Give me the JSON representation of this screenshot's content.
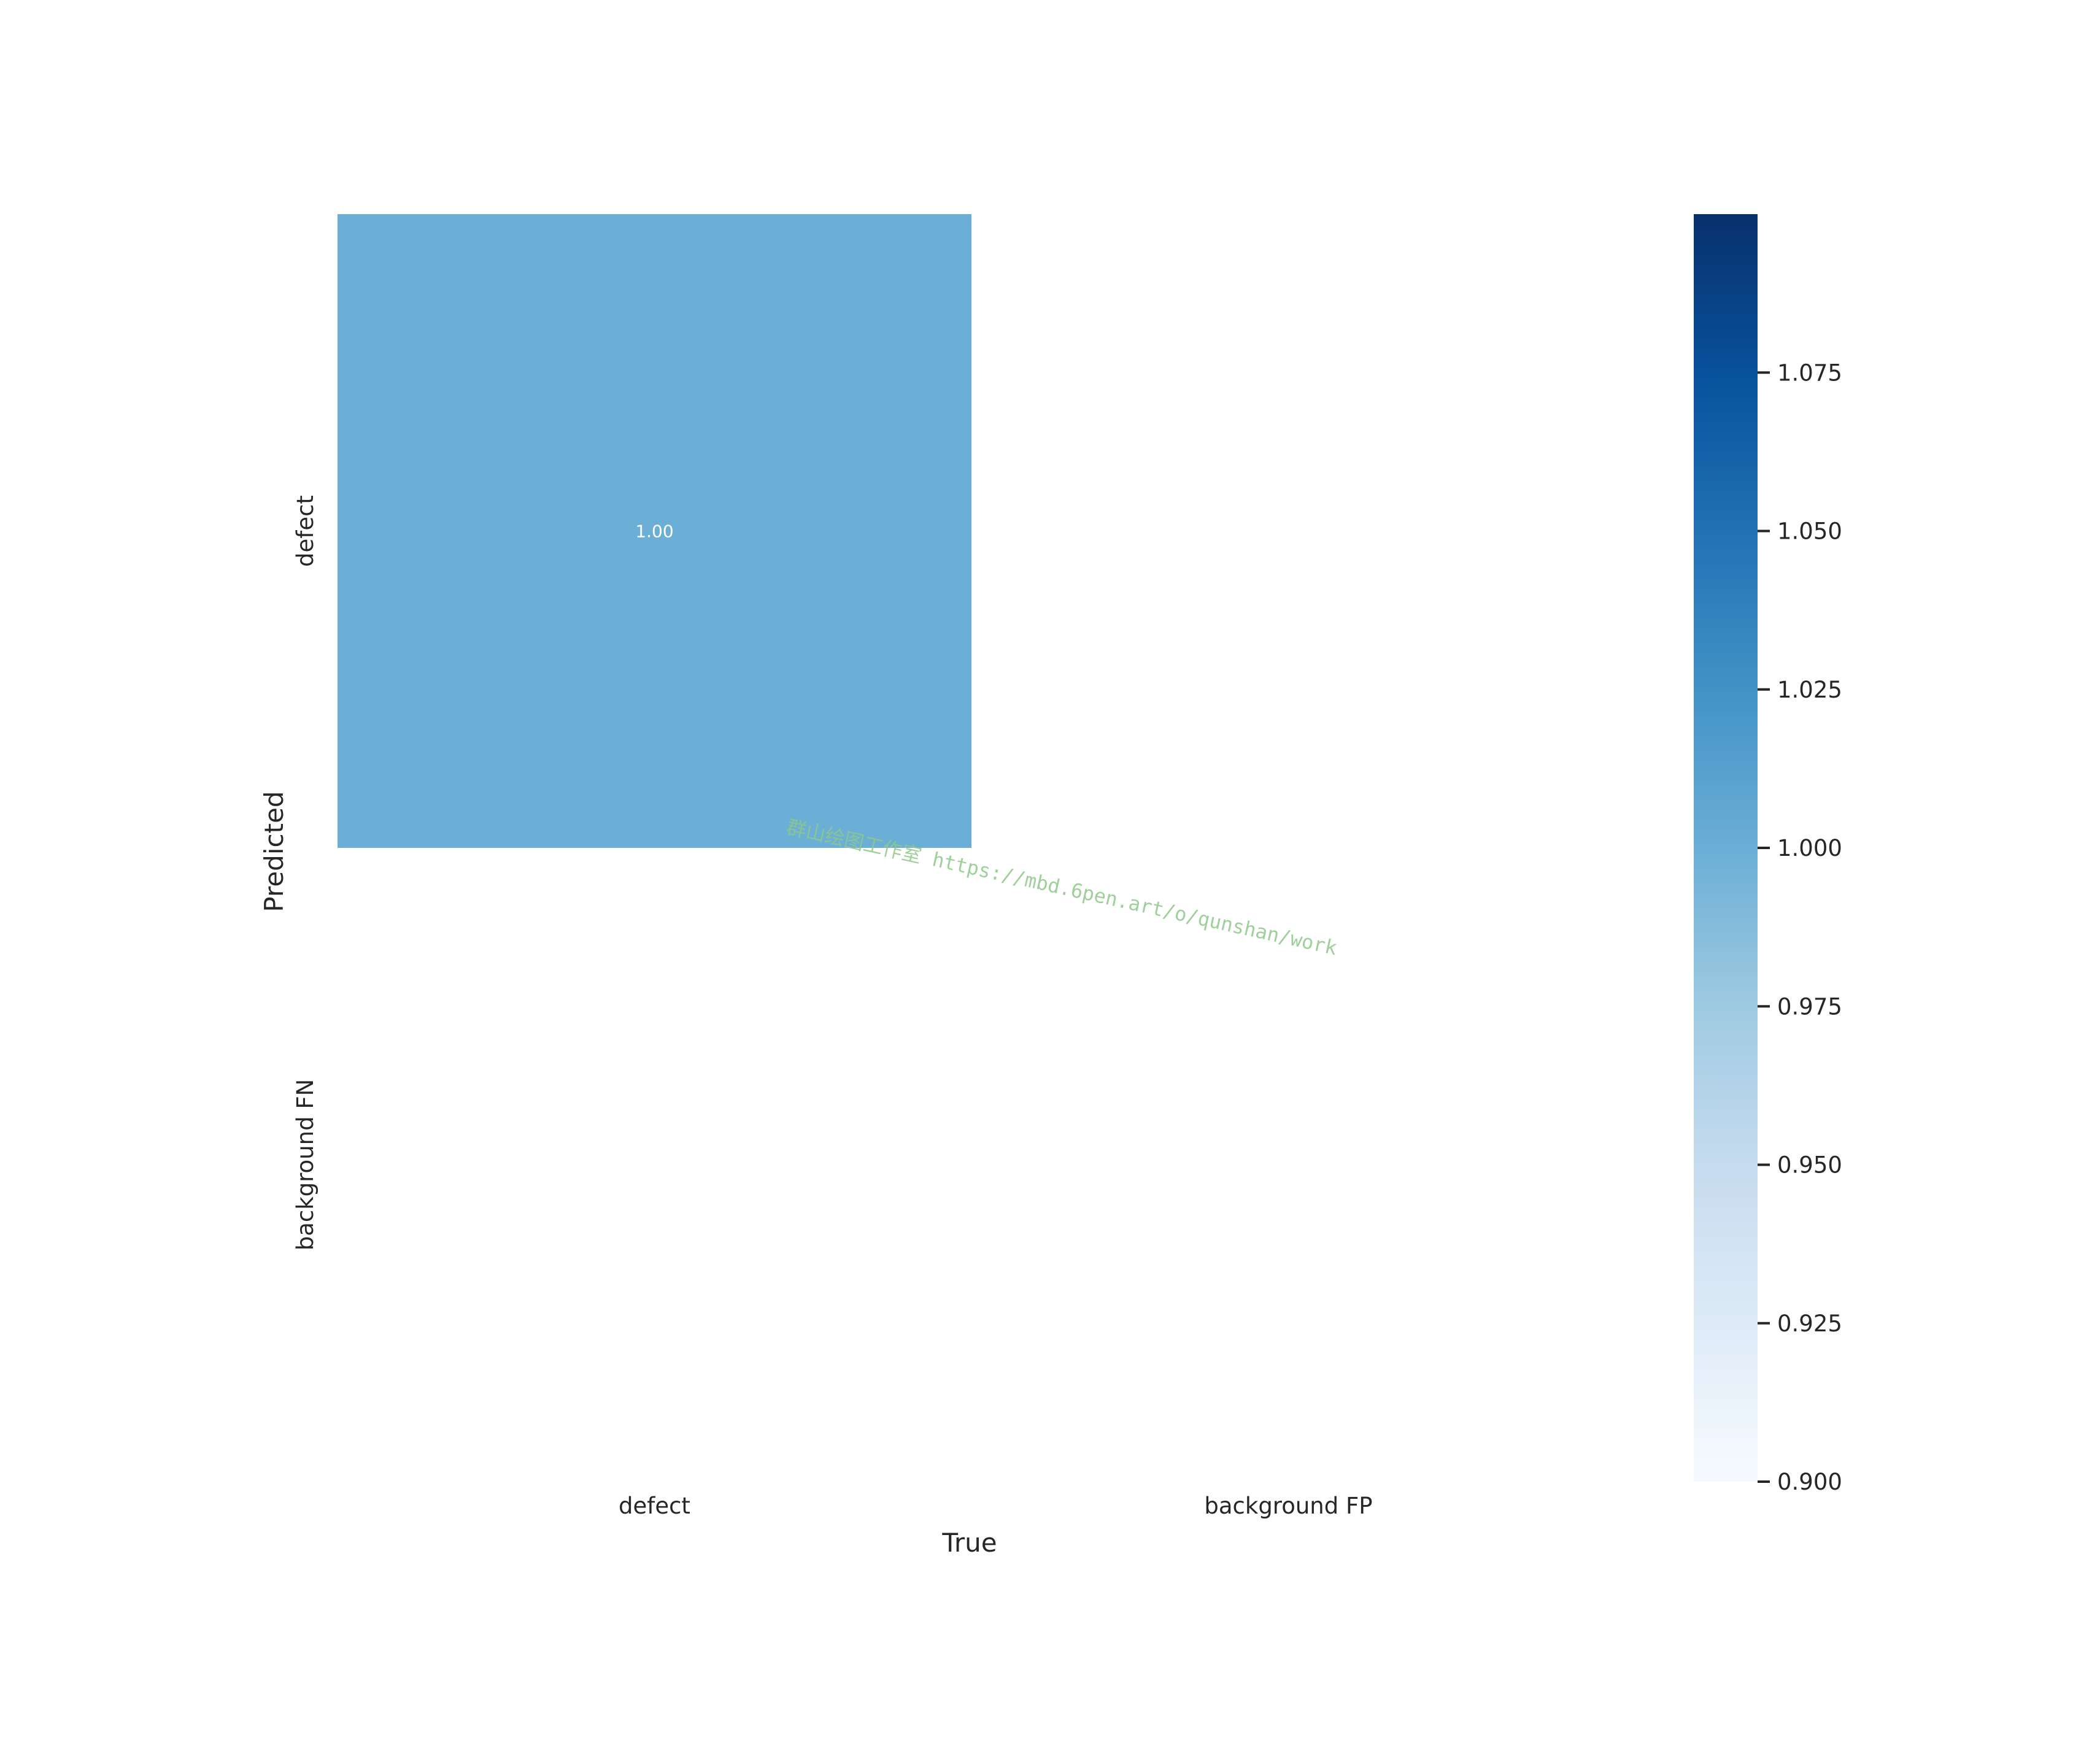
{
  "chart_data": {
    "type": "heatmap",
    "title": "",
    "xlabel": "True",
    "ylabel": "Predicted",
    "x_categories": [
      "defect",
      "background FP"
    ],
    "y_categories": [
      "defect",
      "background FN"
    ],
    "cells": [
      {
        "row": 0,
        "col": 0,
        "value": 1.0,
        "label": "1.00"
      },
      {
        "row": 0,
        "col": 1,
        "value": null,
        "label": ""
      },
      {
        "row": 1,
        "col": 0,
        "value": null,
        "label": ""
      },
      {
        "row": 1,
        "col": 1,
        "value": null,
        "label": ""
      }
    ],
    "colorbar": {
      "cmap": "Blues",
      "vmin": 0.9,
      "vmax": 1.1,
      "ticks": [
        0.9,
        0.925,
        0.95,
        0.975,
        1.0,
        1.025,
        1.05,
        1.075
      ],
      "tick_labels": [
        "0.900",
        "0.925",
        "0.950",
        "0.975",
        "1.000",
        "1.025",
        "1.050",
        "1.075"
      ]
    },
    "grid": false
  },
  "watermark": {
    "text": "群山绘图工作室 https://mbd.6pen.art/o/qunshan/work"
  }
}
